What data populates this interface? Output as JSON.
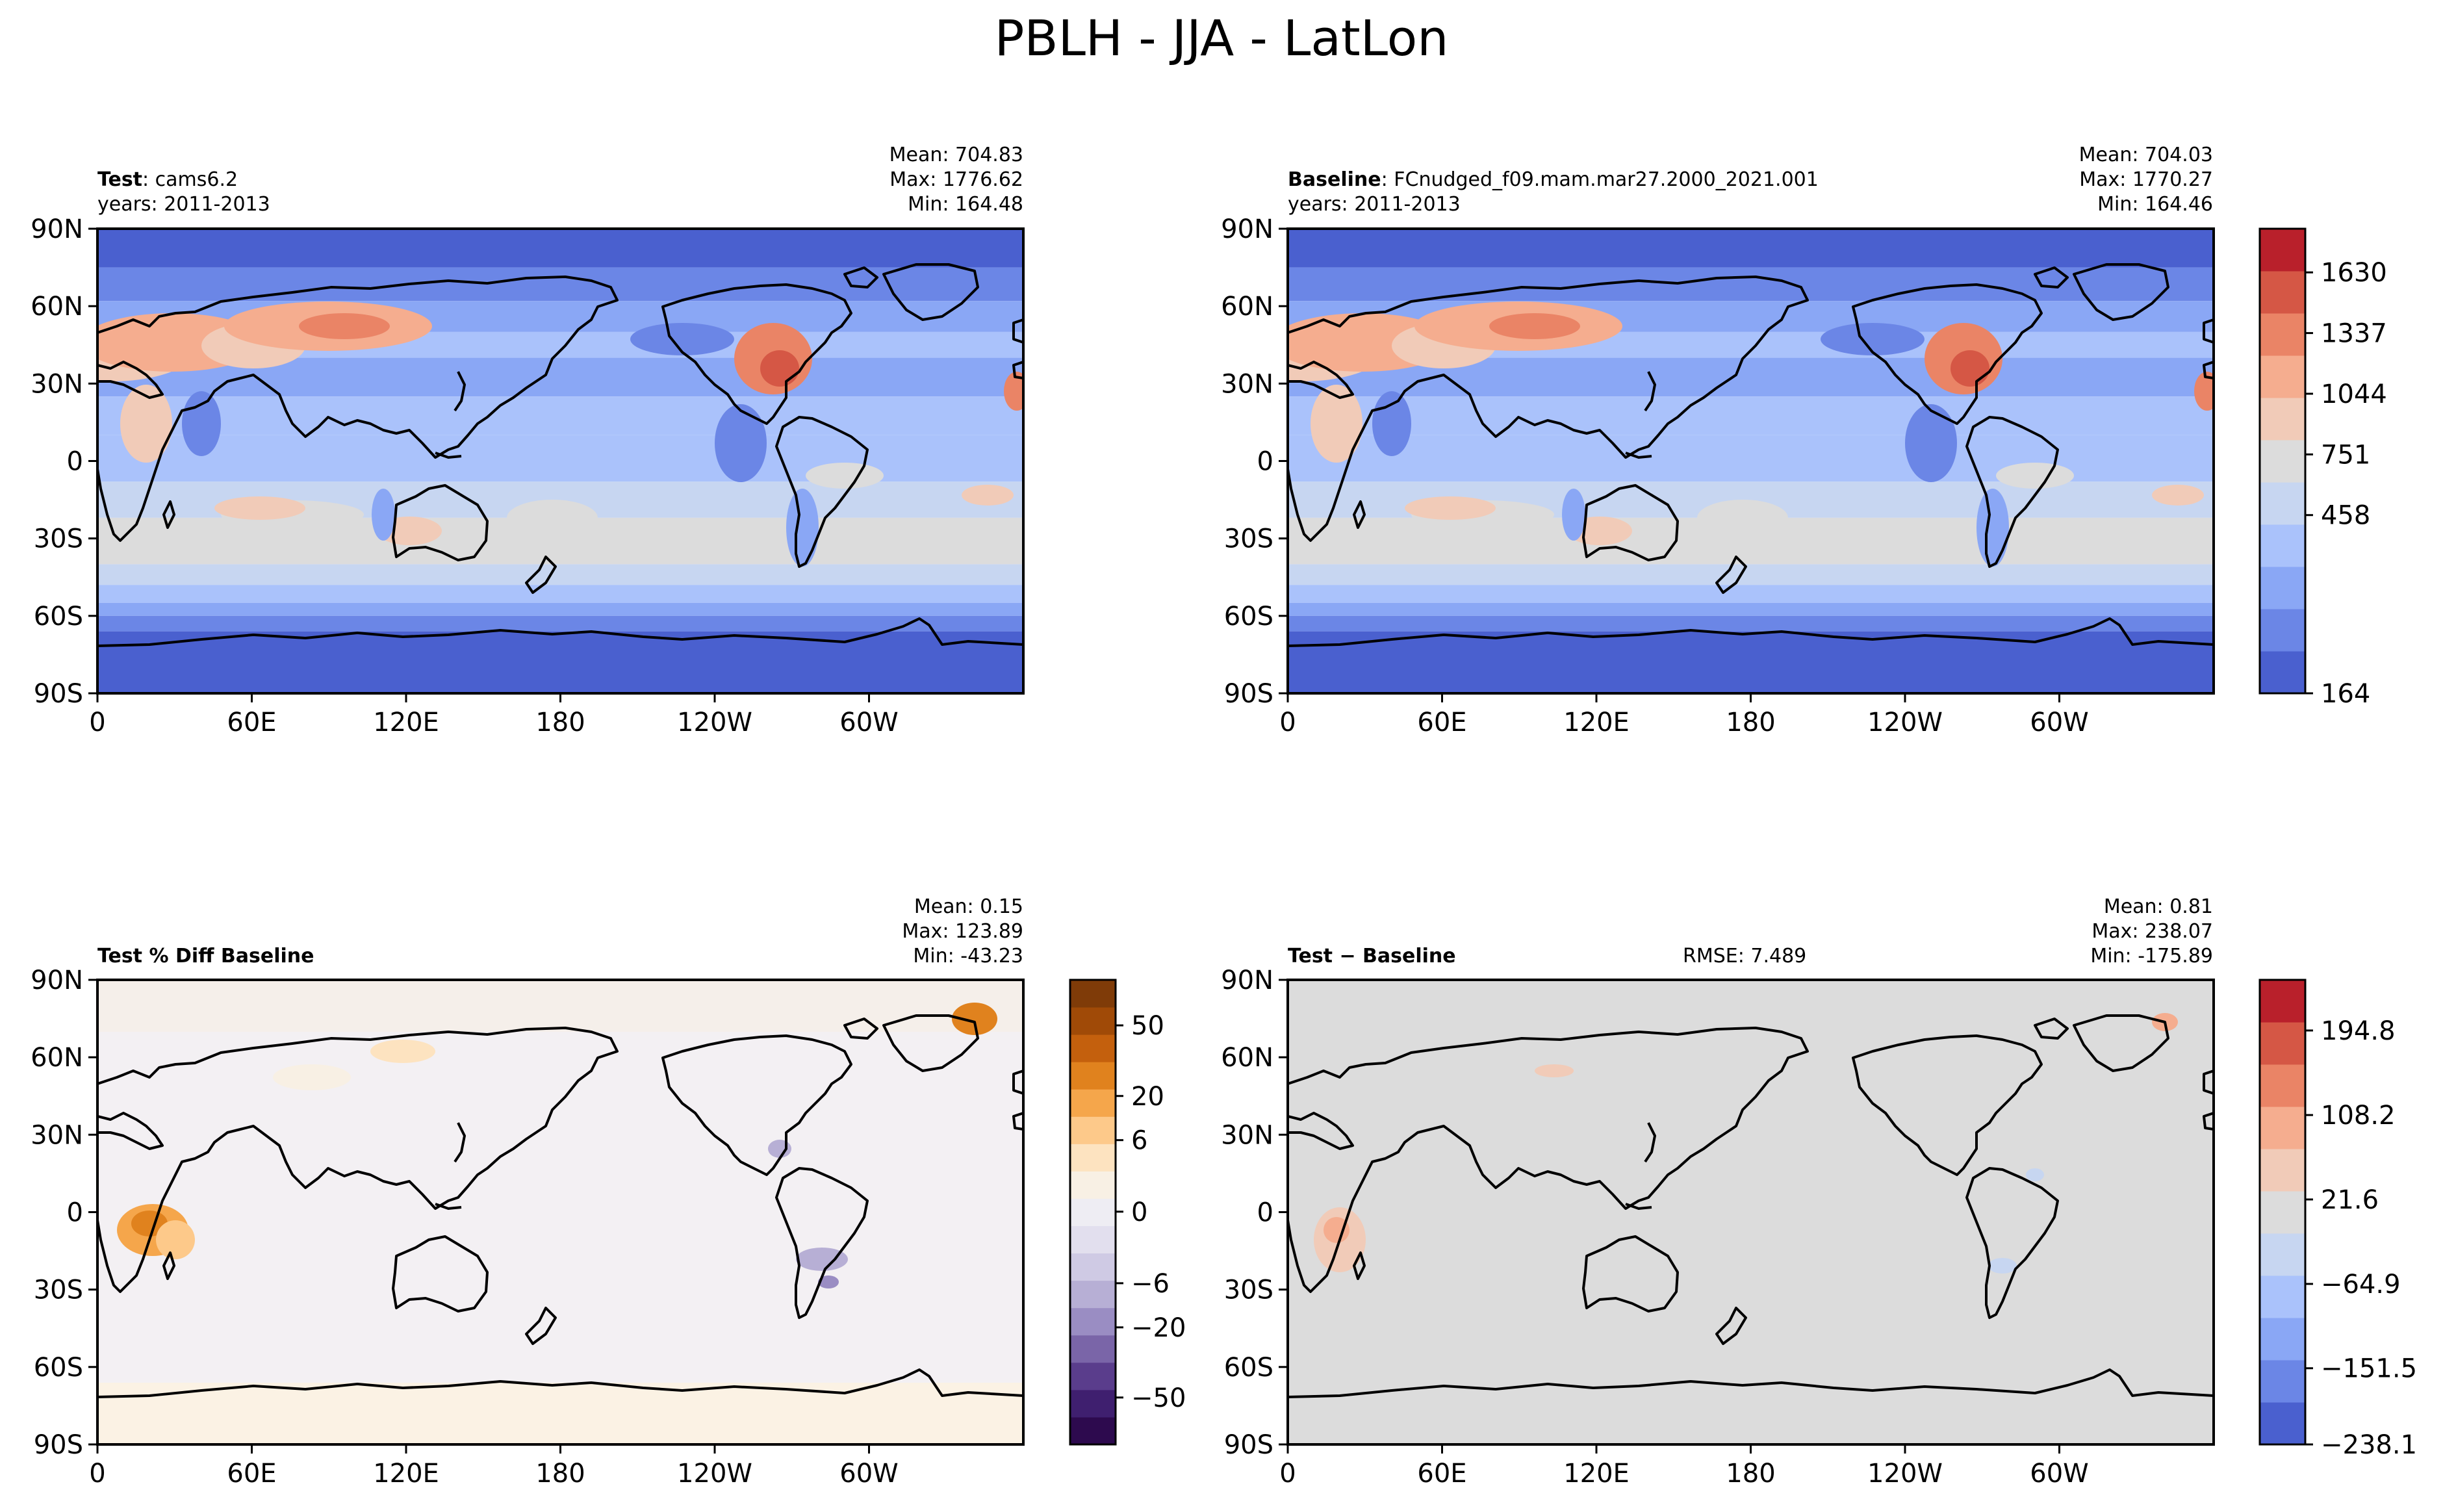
{
  "figure": {
    "title": "PBLH - JJA - LatLon"
  },
  "chart_data": [
    {
      "type": "heatmap",
      "panel": "test",
      "label_bold": "Test",
      "label_rest": ": cams6.2",
      "years": "years: 2011-2013",
      "mean": "Mean: 704.83",
      "max": "Max: 1776.62",
      "min": "Min: 164.48",
      "x_ticks": [
        "0",
        "60E",
        "120E",
        "180",
        "120W",
        "60W"
      ],
      "y_ticks": [
        "90N",
        "60N",
        "30N",
        "0",
        "30S",
        "60S",
        "90S"
      ],
      "xlim": [
        0,
        360
      ],
      "ylim": [
        -90,
        90
      ],
      "colormap": "coolwarm",
      "levels": [
        164,
        458,
        751,
        1044,
        1337,
        1630
      ]
    },
    {
      "type": "heatmap",
      "panel": "baseline",
      "label_bold": "Baseline",
      "label_rest": ": FCnudged_f09.mam.mar27.2000_2021.001",
      "years": "years: 2011-2013",
      "mean": "Mean: 704.03",
      "max": "Max: 1770.27",
      "min": "Min: 164.46",
      "x_ticks": [
        "0",
        "60E",
        "120E",
        "180",
        "120W",
        "60W"
      ],
      "y_ticks": [
        "90N",
        "60N",
        "30N",
        "0",
        "30S",
        "60S",
        "90S"
      ],
      "xlim": [
        0,
        360
      ],
      "ylim": [
        -90,
        90
      ],
      "colorbar_ticks": [
        "1630",
        "1337",
        "1044",
        "751",
        "458",
        "164"
      ],
      "colormap": "coolwarm",
      "levels": [
        164,
        458,
        751,
        1044,
        1337,
        1630
      ]
    },
    {
      "type": "heatmap",
      "panel": "pct_diff",
      "label_bold": "Test % Diff Baseline",
      "mean": "Mean:  0.15",
      "max": "Max: 123.89",
      "min": "Min: -43.23",
      "x_ticks": [
        "0",
        "60E",
        "120E",
        "180",
        "120W",
        "60W"
      ],
      "y_ticks": [
        "90N",
        "60N",
        "30N",
        "0",
        "30S",
        "60S",
        "90S"
      ],
      "xlim": [
        0,
        360
      ],
      "ylim": [
        -90,
        90
      ],
      "colorbar_ticks": [
        "50",
        "20",
        "6",
        "0",
        "−6",
        "−20",
        "−50"
      ],
      "colormap": "PuOr_r",
      "levels": [
        -50,
        -20,
        -6,
        0,
        6,
        20,
        50
      ]
    },
    {
      "type": "heatmap",
      "panel": "diff",
      "label_bold": "Test − Baseline",
      "rmse": "RMSE: 7.489",
      "mean": "Mean:  0.81",
      "max": "Max: 238.07",
      "min": "Min: -175.89",
      "x_ticks": [
        "0",
        "60E",
        "120E",
        "180",
        "120W",
        "60W"
      ],
      "y_ticks": [
        "90N",
        "60N",
        "30N",
        "0",
        "30S",
        "60S",
        "90S"
      ],
      "xlim": [
        0,
        360
      ],
      "ylim": [
        -90,
        90
      ],
      "colorbar_ticks": [
        "194.8",
        "108.2",
        "21.6",
        "−64.9",
        "−151.5",
        "−238.1"
      ],
      "colormap": "coolwarm",
      "levels": [
        -238.1,
        -151.5,
        -64.9,
        21.6,
        108.2,
        194.8
      ]
    }
  ],
  "colors": {
    "pblh_levels": [
      "#4a60cf",
      "#6b86e6",
      "#8aa7f5",
      "#aac2fb",
      "#c7d6f1",
      "#dcdcdc",
      "#f1cbb8",
      "#f5ad8f",
      "#ea8466",
      "#d55745",
      "#b9202b"
    ],
    "pctdiff_levels": [
      "#2d0a4e",
      "#3f1f6f",
      "#5a3d8c",
      "#7a65a8",
      "#9a8dc3",
      "#b7afd5",
      "#cfcae4",
      "#e2dfee",
      "#eeedf3",
      "#f8f0e4",
      "#fde3c0",
      "#fdc98a",
      "#f5a64b",
      "#e0821e",
      "#c4600d",
      "#a04a07",
      "#7f3b08"
    ],
    "land_line": "#000000"
  }
}
